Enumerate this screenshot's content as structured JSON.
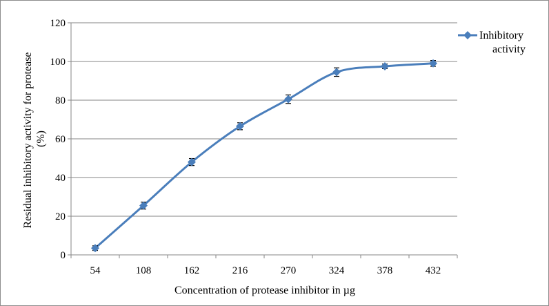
{
  "chart_data": {
    "type": "line",
    "title": "",
    "xlabel": "Concentration of protease inhibitor in µg",
    "ylabel_lines": [
      "Residual inhibitory activity for protease",
      "(%)"
    ],
    "categories": [
      "54",
      "108",
      "162",
      "216",
      "270",
      "324",
      "378",
      "432"
    ],
    "ylim": [
      0,
      120
    ],
    "yticks": [
      0,
      20,
      40,
      60,
      80,
      100,
      120
    ],
    "ytick_labels": [
      "0",
      "20",
      "40",
      "60",
      "80",
      "100",
      "120"
    ],
    "grid": "horizontal",
    "legend_position": "right",
    "series": [
      {
        "name_lines": [
          "Inhibitory",
          "activity"
        ],
        "color": "#4a7ebb",
        "marker": "diamond",
        "values": [
          3.5,
          25.5,
          48,
          66.5,
          80.5,
          94.5,
          97.5,
          99
        ],
        "error": [
          1.2,
          1.8,
          1.8,
          1.8,
          2.2,
          2.2,
          1.2,
          1.5
        ]
      }
    ]
  }
}
